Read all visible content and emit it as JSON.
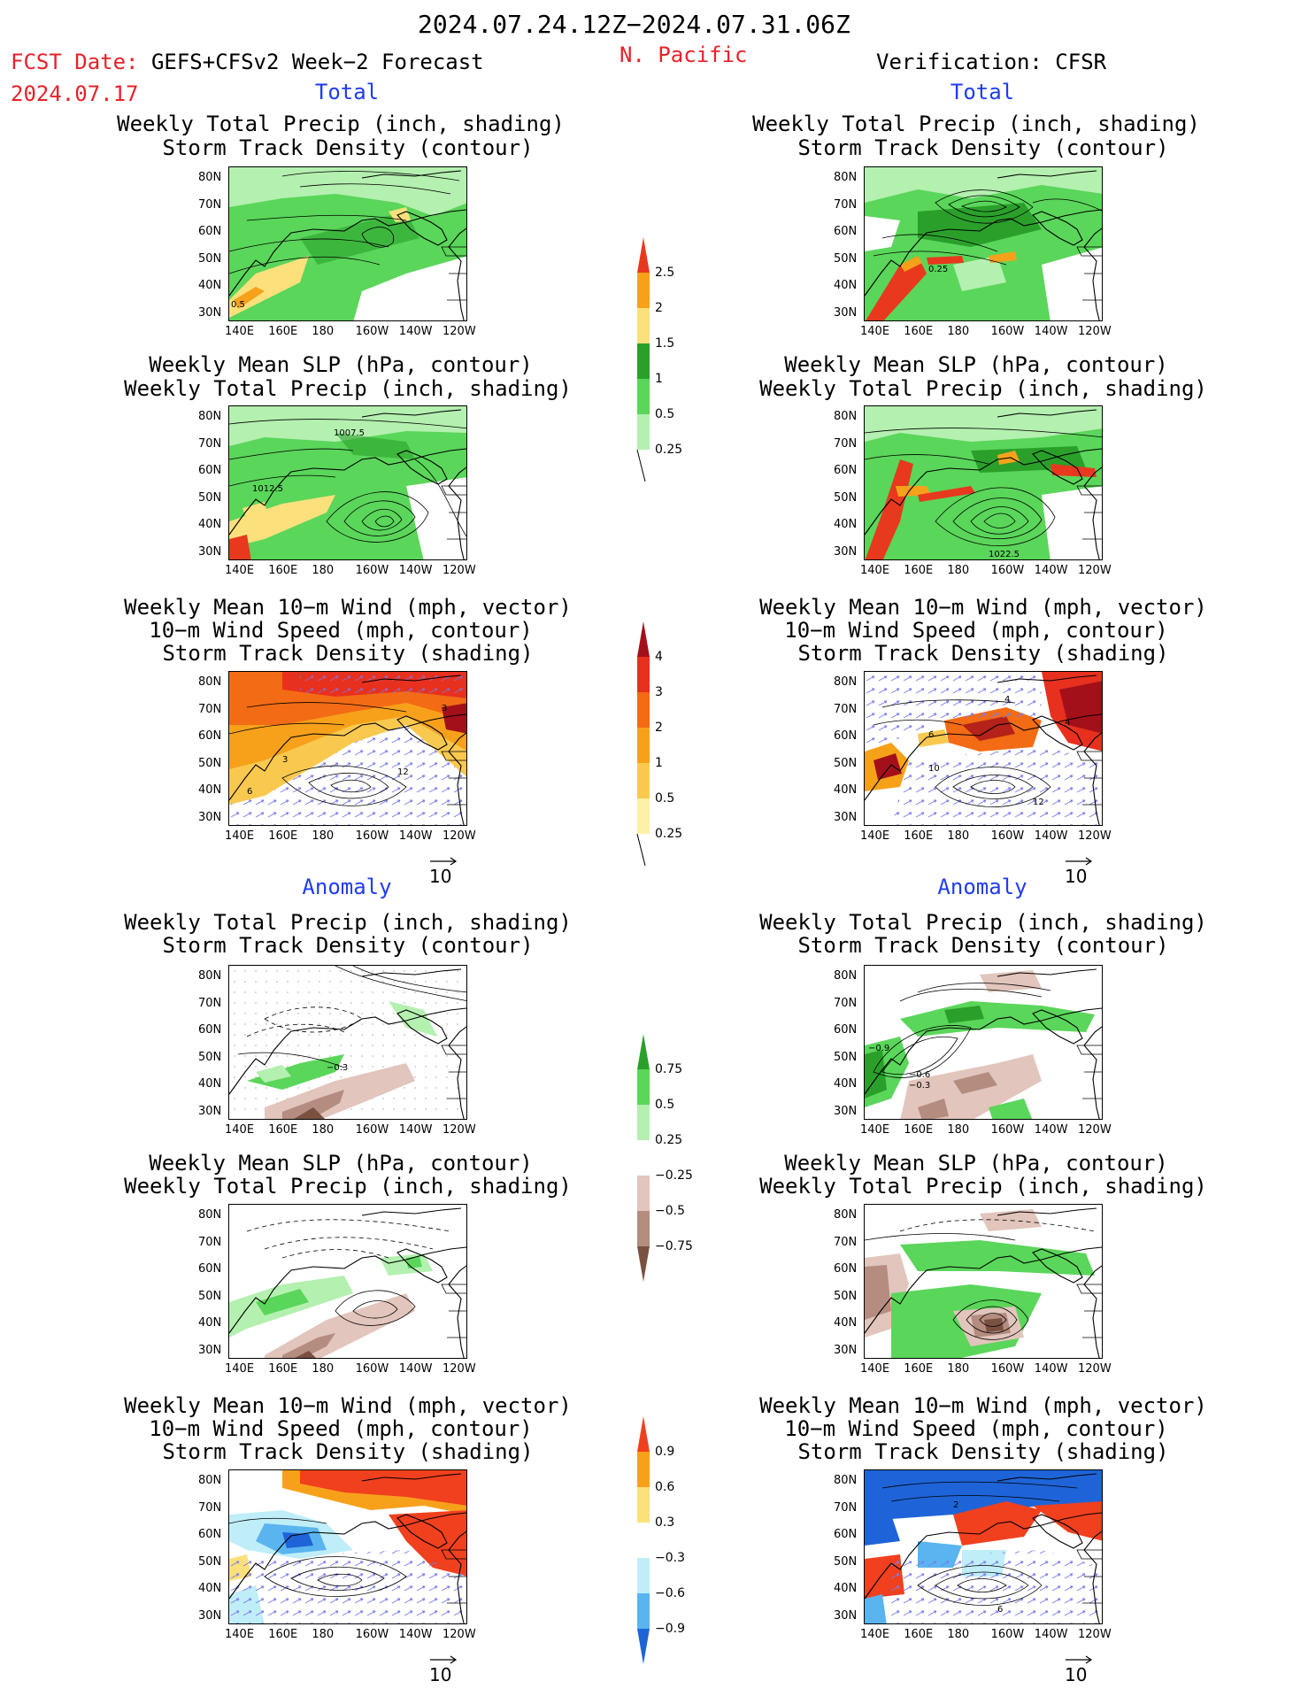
{
  "header": {
    "date_range": "2024.07.24.12Z−2024.07.31.06Z",
    "fcst_label": "FCST Date:",
    "fcst_model": "GEFS+CFSv2 Week−2 Forecast",
    "fcst_date": "2024.07.17",
    "region": "N. Pacific",
    "verification": "Verification: CFSR"
  },
  "sections": {
    "total": "Total",
    "anomaly": "Anomaly"
  },
  "titles": {
    "precip_storm_1": "Weekly Total Precip (inch, shading)",
    "precip_storm_2": "Storm Track Density (contour)",
    "slp_precip_1": "Weekly Mean SLP (hPa, contour)",
    "slp_precip_2": "Weekly Total Precip (inch, shading)",
    "wind_1": "Weekly Mean 10−m Wind (mph, vector)",
    "wind_2": "10−m Wind Speed (mph, contour)",
    "wind_3": "Storm Track Density (shading)"
  },
  "axes": {
    "lat_ticks": [
      "80N",
      "70N",
      "60N",
      "50N",
      "40N",
      "30N"
    ],
    "lon_ticks": [
      "140E",
      "160E",
      "180",
      "160W",
      "140W",
      "120W"
    ]
  },
  "vector_ref": "10",
  "colorbars": {
    "precip_total": {
      "labels": [
        "2.5",
        "2",
        "1.5",
        "1",
        "0.5",
        "0.25"
      ],
      "colors": [
        "#e8381e",
        "#f7a11b",
        "#fbe07c",
        "#2aa02b",
        "#5ad65a",
        "#b4f0b0"
      ]
    },
    "storm_total": {
      "labels": [
        "4",
        "3",
        "2",
        "1",
        "0.5",
        "0.25"
      ],
      "colors": [
        "#a4101a",
        "#e8301e",
        "#f36b14",
        "#f7a11b",
        "#f9c94f",
        "#fdf1a8"
      ]
    },
    "precip_anom": {
      "labels": [
        "0.75",
        "0.5",
        "0.25",
        "−0.25",
        "−0.5",
        "−0.75"
      ],
      "colors": [
        "#2aa02b",
        "#5ad65a",
        "#b4f0b0",
        "#ffffff",
        "#e2c5bc",
        "#b48c80",
        "#7a5040"
      ]
    },
    "storm_anom": {
      "labels": [
        "0.9",
        "0.6",
        "0.3",
        "−0.3",
        "−0.6",
        "−0.9"
      ],
      "colors": [
        "#f0401e",
        "#f7a11b",
        "#fbe07c",
        "#ffffff",
        "#bfeef8",
        "#5ab4f0",
        "#1e64d8"
      ]
    }
  },
  "contour_labels": {
    "p1_left": "0.5",
    "p1_right": "0.25",
    "p2_left_a": "1007.5",
    "p2_left_b": "1012.5",
    "p2_right": "1022.5",
    "p3_left_a": "3",
    "p3_left_b": "3",
    "p3_left_c": "6",
    "p3_left_d": "12",
    "p3_right_a": "4",
    "p3_right_b": "6",
    "p3_right_c": "10",
    "p3_right_d": "12",
    "p3_right_e": "4",
    "p4_left": "−0.3",
    "p4_right_a": "−0.9",
    "p4_right_b": "−0.6",
    "p4_right_c": "−0.3",
    "p6_right_a": "2",
    "p6_right_b": "6"
  }
}
